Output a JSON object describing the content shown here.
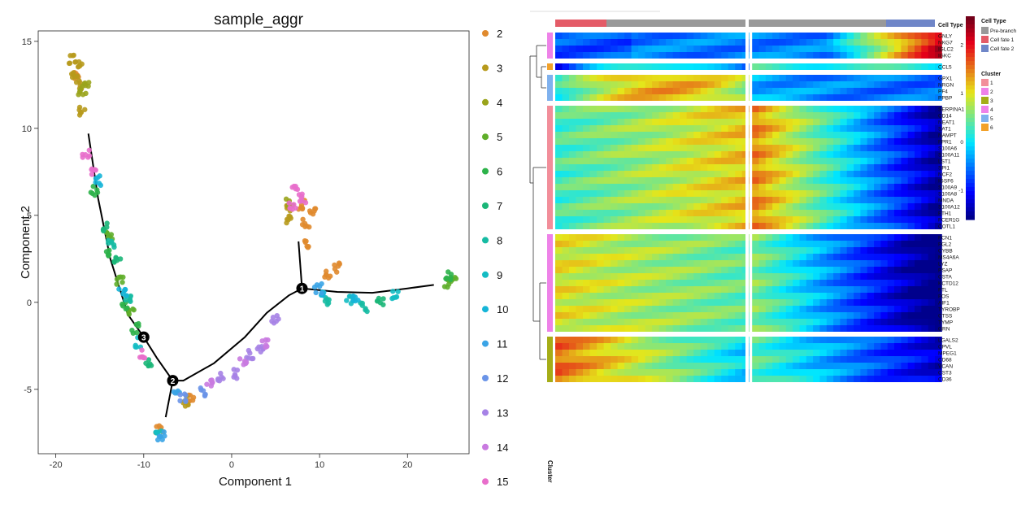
{
  "trajectory_plot": {
    "title": "sample_aggr",
    "xlabel": "Component 1",
    "ylabel": "Component 2",
    "xlim": [
      -22,
      27
    ],
    "ylim": [
      -8.7,
      15.6
    ],
    "x_ticks": [
      -20,
      -10,
      0,
      10,
      20
    ],
    "y_ticks": [
      -5,
      0,
      5,
      10,
      15
    ],
    "tick_labels_x": [
      "-20",
      "-10",
      "0",
      "10",
      "20"
    ],
    "tick_labels_y": [
      "-5",
      "0",
      "5",
      "10",
      "15"
    ],
    "branch_points": [
      {
        "label": "3",
        "x": -10,
        "y": -2.0
      },
      {
        "label": "2",
        "x": -6.7,
        "y": -4.5
      },
      {
        "label": "1",
        "x": 8,
        "y": 0.8
      }
    ],
    "trajectory": [
      [
        [
          -16.3,
          9.7
        ],
        [
          -15.2,
          6.0
        ],
        [
          -13.8,
          2.5
        ],
        [
          -11.8,
          -0.7
        ],
        [
          -10,
          -2.0
        ],
        [
          -8.5,
          -3.2
        ],
        [
          -6.7,
          -4.5
        ],
        [
          -6.7,
          -4.5
        ],
        [
          -5.5,
          -4.5
        ],
        [
          -2,
          -3.5
        ],
        [
          1.5,
          -2.0
        ],
        [
          4,
          -0.6
        ],
        [
          6.5,
          0.4
        ],
        [
          8,
          0.8
        ]
      ],
      [
        [
          -6.7,
          -4.5
        ],
        [
          -7.5,
          -6.6
        ]
      ],
      [
        [
          8,
          0.8
        ],
        [
          7.6,
          3.5
        ]
      ],
      [
        [
          8,
          0.8
        ],
        [
          12,
          0.6
        ],
        [
          16,
          0.55
        ],
        [
          20,
          0.8
        ],
        [
          23,
          1.0
        ]
      ]
    ],
    "legend": [
      {
        "label": "2",
        "color": "#e08a2e"
      },
      {
        "label": "3",
        "color": "#b79a1c"
      },
      {
        "label": "4",
        "color": "#9aa41c"
      },
      {
        "label": "5",
        "color": "#5fae2a"
      },
      {
        "label": "6",
        "color": "#2db34a"
      },
      {
        "label": "7",
        "color": "#1bb678"
      },
      {
        "label": "8",
        "color": "#16bba3"
      },
      {
        "label": "9",
        "color": "#14bcc3"
      },
      {
        "label": "10",
        "color": "#16b5d8"
      },
      {
        "label": "11",
        "color": "#3ba4e6"
      },
      {
        "label": "12",
        "color": "#6a94e8"
      },
      {
        "label": "13",
        "color": "#a682e6"
      },
      {
        "label": "14",
        "color": "#c97ae0"
      },
      {
        "label": "15",
        "color": "#e86ecb"
      }
    ]
  },
  "chart_data": [
    {
      "type": "scatter",
      "title": "sample_aggr",
      "xlabel": "Component 1",
      "ylabel": "Component 2",
      "xlim": [
        -22,
        27
      ],
      "ylim": [
        -8.7,
        15.6
      ],
      "series": [
        {
          "name": "2",
          "points": [
            [
              -17.5,
              13
            ],
            [
              7.9,
              5.6
            ],
            [
              8.4,
              4.5
            ],
            [
              8.7,
              3.3
            ],
            [
              9.3,
              5.3
            ],
            [
              10.8,
              1.6
            ],
            [
              11.9,
              2.0
            ],
            [
              -4.5,
              -5.6
            ],
            [
              -8.2,
              -7.3
            ]
          ]
        },
        {
          "name": "3",
          "points": [
            [
              -18.1,
              14.0
            ],
            [
              -17.8,
              13.2
            ],
            [
              -17.2,
              12.5
            ],
            [
              -16.9,
              11.0
            ],
            [
              -17.4,
              13.6
            ],
            [
              6.3,
              5.3
            ],
            [
              6.3,
              4.8
            ],
            [
              -5.1,
              -5.7
            ]
          ]
        },
        {
          "name": "4",
          "points": [
            [
              -17.0,
              12.0
            ],
            [
              -16.6,
              12.6
            ],
            [
              6.6,
              5.8
            ]
          ]
        },
        {
          "name": "5",
          "points": [
            [
              -13.9,
              3.9
            ],
            [
              -12.7,
              1.2
            ],
            [
              -11.5,
              -0.5
            ],
            [
              25.1,
              1.3
            ],
            [
              24.6,
              1.1
            ]
          ]
        },
        {
          "name": "6",
          "points": [
            [
              -15.6,
              6.4
            ],
            [
              -14.0,
              2.9
            ],
            [
              -12.0,
              -0.1
            ],
            [
              -10.9,
              -1.5
            ],
            [
              24.8,
              1.5
            ]
          ]
        },
        {
          "name": "7",
          "points": [
            [
              -14.2,
              4.3
            ],
            [
              -13.0,
              2.4
            ],
            [
              -9.4,
              -3.5
            ],
            [
              17.0,
              0.1
            ]
          ]
        },
        {
          "name": "8",
          "points": [
            [
              -13.6,
              3.4
            ],
            [
              -11.9,
              0.2
            ],
            [
              11.0,
              0.1
            ],
            [
              15.1,
              -0.3
            ]
          ]
        },
        {
          "name": "9",
          "points": [
            [
              -10.5,
              -2.3
            ],
            [
              -8.2,
              -7.5
            ],
            [
              13.4,
              0.2
            ],
            [
              18.5,
              0.4
            ]
          ]
        },
        {
          "name": "10",
          "points": [
            [
              -15.3,
              7.0
            ],
            [
              -12.4,
              0.6
            ],
            [
              10.5,
              0.6
            ],
            [
              14.2,
              0.3
            ]
          ]
        },
        {
          "name": "11",
          "points": [
            [
              -8.0,
              -7.7
            ],
            [
              -6.3,
              -5.3
            ],
            [
              9.8,
              0.8
            ]
          ]
        },
        {
          "name": "12",
          "points": [
            [
              -5.5,
              -5.5
            ],
            [
              -3.2,
              -5.1
            ]
          ]
        },
        {
          "name": "13",
          "points": [
            [
              -1.2,
              -4.3
            ],
            [
              0.5,
              -4.1
            ],
            [
              2.0,
              -3.0
            ],
            [
              3.3,
              -2.8
            ],
            [
              5.0,
              -1.0
            ]
          ]
        },
        {
          "name": "14",
          "points": [
            [
              -2.5,
              -4.6
            ],
            [
              1.3,
              -3.4
            ],
            [
              3.9,
              -2.4
            ]
          ]
        },
        {
          "name": "15",
          "points": [
            [
              -16.6,
              8.6
            ],
            [
              -15.7,
              7.6
            ],
            [
              -10.0,
              -3.0
            ],
            [
              7.3,
              6.4
            ],
            [
              6.9,
              5.5
            ],
            [
              8.0,
              6.0
            ]
          ]
        }
      ]
    },
    {
      "type": "heatmap",
      "legend_title_celltype": "Cell Type",
      "celltypes": [
        {
          "label": "Pre-branch",
          "color": "#999999"
        },
        {
          "label": "Cell fate 1",
          "color": "#e45b67"
        },
        {
          "label": "Cell fate 2",
          "color": "#6f86c8"
        }
      ],
      "cluster_legend_title": "Cluster",
      "clusters": [
        {
          "label": "1",
          "color": "#f28e9a"
        },
        {
          "label": "2",
          "color": "#ee82e8"
        },
        {
          "label": "3",
          "color": "#a5ad17"
        },
        {
          "label": "4",
          "color": "#ee82e8"
        },
        {
          "label": "5",
          "color": "#7fb1ee"
        },
        {
          "label": "6",
          "color": "#f2a12a"
        }
      ],
      "colorscale_ticks": [
        "2",
        "1",
        "0",
        "-1"
      ],
      "cluster_axis_label": "Cluster",
      "gene_blocks": [
        {
          "cluster": "4",
          "genes": [
            "GNLY",
            "NKG7",
            "IGLC2",
            "IGKC"
          ]
        },
        {
          "cluster": "6",
          "genes": [
            "CCL5"
          ]
        },
        {
          "cluster": "5",
          "genes": [
            "GPX1",
            "NRGN",
            "PF4",
            "PPBP"
          ]
        },
        {
          "cluster": "1",
          "genes": [
            "SERPINA1",
            "CD14",
            "NEAT1",
            "SAT1",
            "NAMPT",
            "FPR1",
            "S100A6",
            "S100A11",
            "LST1",
            "SPI1",
            "NCF2",
            "IGSF6",
            "S100A9",
            "S100A8",
            "MNDA",
            "S100A12",
            "FTH1",
            "FCER1G",
            "COTL1"
          ]
        },
        {
          "cluster": "2",
          "genes": [
            "FCN1",
            "FGL2",
            "CYBB",
            "MS4A6A",
            "LYZ",
            "PSAP",
            "CSTA",
            "KCTD12",
            "FTL",
            "FOS",
            "AIF1",
            "TYROBP",
            "CTSS",
            "TYMP",
            "GRN"
          ]
        },
        {
          "cluster": "3",
          "genes": [
            "LGALS2",
            "CPVL",
            "MPEG1",
            "CD68",
            "VCAN",
            "CST3",
            "CD36"
          ]
        }
      ]
    }
  ]
}
